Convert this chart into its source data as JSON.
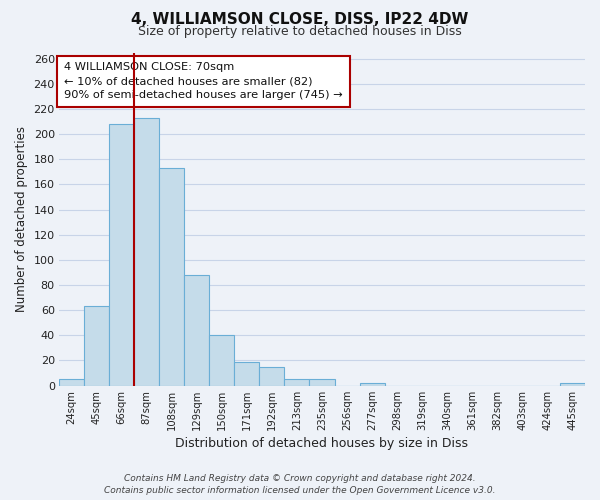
{
  "title": "4, WILLIAMSON CLOSE, DISS, IP22 4DW",
  "subtitle": "Size of property relative to detached houses in Diss",
  "xlabel": "Distribution of detached houses by size in Diss",
  "ylabel": "Number of detached properties",
  "bar_labels": [
    "24sqm",
    "45sqm",
    "66sqm",
    "87sqm",
    "108sqm",
    "129sqm",
    "150sqm",
    "171sqm",
    "192sqm",
    "213sqm",
    "235sqm",
    "256sqm",
    "277sqm",
    "298sqm",
    "319sqm",
    "340sqm",
    "361sqm",
    "382sqm",
    "403sqm",
    "424sqm",
    "445sqm"
  ],
  "bar_values": [
    5,
    63,
    208,
    213,
    173,
    88,
    40,
    19,
    15,
    5,
    5,
    0,
    2,
    0,
    0,
    0,
    0,
    0,
    0,
    0,
    2
  ],
  "bar_fill_color": "#c5dcea",
  "bar_edge_color": "#6aaed6",
  "grid_color": "#c8d4e8",
  "background_color": "#eef2f8",
  "vline_color": "#aa0000",
  "vline_x_index": 2,
  "annotation_text": "4 WILLIAMSON CLOSE: 70sqm\n← 10% of detached houses are smaller (82)\n90% of semi-detached houses are larger (745) →",
  "annotation_box_facecolor": "#ffffff",
  "annotation_box_edgecolor": "#aa0000",
  "ylim_max": 265,
  "yticks": [
    0,
    20,
    40,
    60,
    80,
    100,
    120,
    140,
    160,
    180,
    200,
    220,
    240,
    260
  ],
  "footer_line1": "Contains HM Land Registry data © Crown copyright and database right 2024.",
  "footer_line2": "Contains public sector information licensed under the Open Government Licence v3.0."
}
